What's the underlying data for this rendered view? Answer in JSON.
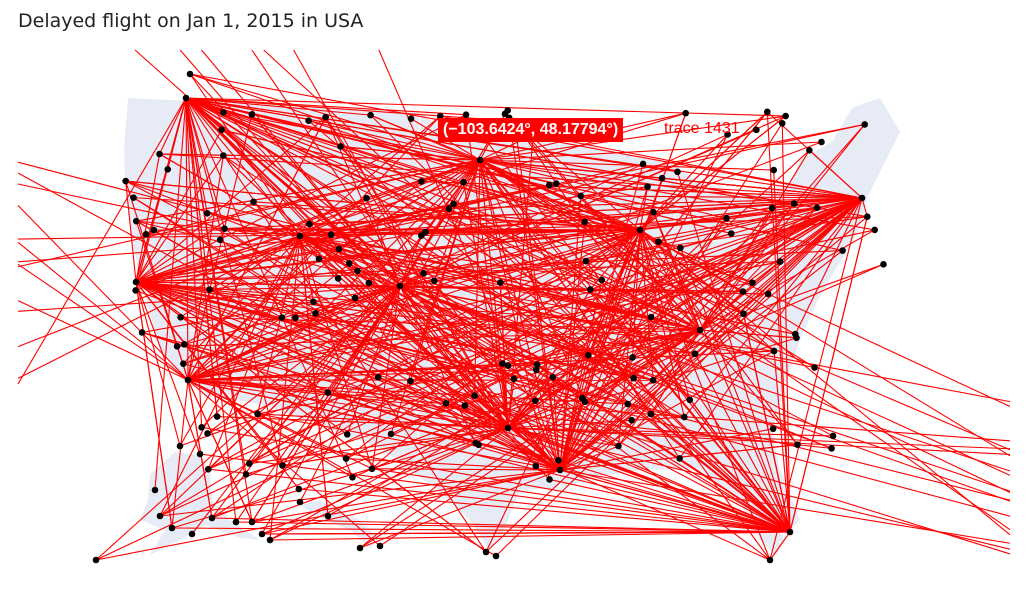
{
  "title": "Delayed flight on Jan 1, 2015 in USA",
  "colors": {
    "land": "#e6ebf5",
    "route": "#ff0000",
    "airport": "#000000",
    "background": "#ffffff"
  },
  "hover": {
    "coords": "(−103.6424°, 48.17794°)",
    "trace": "trace 1431"
  }
}
